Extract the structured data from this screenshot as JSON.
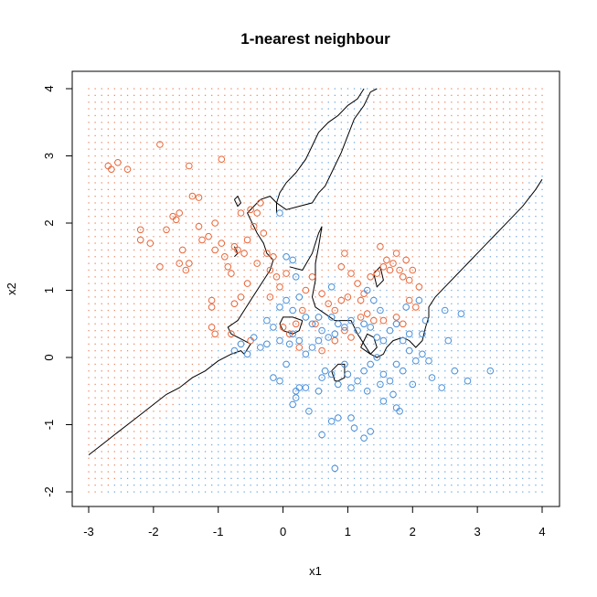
{
  "chart_data": {
    "type": "scatter",
    "title": "1-nearest neighbour",
    "xlabel": "x1",
    "ylabel": "x2",
    "xlim": [
      -3,
      4
    ],
    "ylim": [
      -2,
      4
    ],
    "xticks": [
      -3,
      -2,
      -1,
      0,
      1,
      2,
      3,
      4
    ],
    "yticks": [
      -2,
      -1,
      0,
      1,
      2,
      3,
      4
    ],
    "grid": false,
    "background_grid_step": 0.1,
    "colors": {
      "class_a": "#E8673A",
      "class_b": "#4A8FD8",
      "boundary": "#000000"
    },
    "series": [
      {
        "color_key": "class_a",
        "points": [
          [
            -2.7,
            2.85
          ],
          [
            -2.65,
            2.8
          ],
          [
            -2.55,
            2.9
          ],
          [
            -2.4,
            2.8
          ],
          [
            -1.9,
            3.17
          ],
          [
            -1.45,
            2.85
          ],
          [
            -1.4,
            2.4
          ],
          [
            -1.3,
            2.38
          ],
          [
            -0.95,
            2.95
          ],
          [
            -0.65,
            2.15
          ],
          [
            -0.5,
            2.2
          ],
          [
            -0.35,
            2.3
          ],
          [
            -2.2,
            1.9
          ],
          [
            -2.2,
            1.75
          ],
          [
            -2.05,
            1.7
          ],
          [
            -1.9,
            1.35
          ],
          [
            -1.8,
            1.9
          ],
          [
            -1.7,
            2.1
          ],
          [
            -1.65,
            2.05
          ],
          [
            -1.6,
            2.15
          ],
          [
            -1.55,
            1.6
          ],
          [
            -1.6,
            1.4
          ],
          [
            -1.5,
            1.3
          ],
          [
            -1.45,
            1.4
          ],
          [
            -1.3,
            1.95
          ],
          [
            -1.25,
            1.75
          ],
          [
            -1.15,
            1.8
          ],
          [
            -1.05,
            2.0
          ],
          [
            -1.05,
            1.6
          ],
          [
            -0.95,
            1.7
          ],
          [
            -0.9,
            1.5
          ],
          [
            -0.85,
            1.35
          ],
          [
            -0.8,
            1.25
          ],
          [
            -0.75,
            1.65
          ],
          [
            -0.7,
            1.6
          ],
          [
            -0.6,
            1.55
          ],
          [
            -0.55,
            1.75
          ],
          [
            -0.45,
            1.95
          ],
          [
            -0.4,
            2.15
          ],
          [
            -0.3,
            1.85
          ],
          [
            -0.25,
            1.55
          ],
          [
            -0.2,
            1.3
          ],
          [
            -0.15,
            1.5
          ],
          [
            -0.1,
            1.2
          ],
          [
            -0.05,
            1.05
          ],
          [
            0.05,
            1.25
          ],
          [
            -0.4,
            1.4
          ],
          [
            -0.55,
            1.1
          ],
          [
            -0.65,
            0.9
          ],
          [
            -0.75,
            0.8
          ],
          [
            -1.1,
            0.85
          ],
          [
            -1.1,
            0.75
          ],
          [
            -1.1,
            0.45
          ],
          [
            -1.05,
            0.35
          ],
          [
            -0.2,
            0.9
          ],
          [
            0.0,
            0.45
          ],
          [
            0.1,
            0.35
          ],
          [
            0.2,
            0.5
          ],
          [
            0.3,
            0.7
          ],
          [
            0.35,
            1.0
          ],
          [
            0.45,
            1.2
          ],
          [
            0.6,
            0.95
          ],
          [
            0.7,
            0.8
          ],
          [
            0.8,
            0.7
          ],
          [
            0.9,
            0.85
          ],
          [
            0.9,
            1.35
          ],
          [
            0.95,
            1.55
          ],
          [
            1.05,
            1.25
          ],
          [
            1.15,
            1.1
          ],
          [
            1.25,
            0.95
          ],
          [
            1.35,
            1.2
          ],
          [
            1.45,
            1.25
          ],
          [
            1.55,
            1.35
          ],
          [
            1.5,
            1.65
          ],
          [
            1.6,
            1.45
          ],
          [
            1.65,
            1.3
          ],
          [
            1.7,
            1.4
          ],
          [
            1.75,
            1.55
          ],
          [
            1.8,
            1.3
          ],
          [
            1.85,
            1.2
          ],
          [
            1.9,
            1.45
          ],
          [
            1.95,
            1.15
          ],
          [
            2.0,
            1.3
          ],
          [
            2.1,
            1.05
          ],
          [
            1.55,
            0.55
          ],
          [
            1.75,
            0.6
          ],
          [
            1.85,
            0.5
          ],
          [
            1.95,
            0.85
          ],
          [
            2.05,
            0.75
          ],
          [
            1.2,
            0.85
          ],
          [
            1.3,
            0.65
          ],
          [
            0.95,
            0.4
          ],
          [
            1.05,
            0.3
          ],
          [
            1.2,
            0.6
          ],
          [
            1.4,
            0.55
          ],
          [
            0.6,
            0.1
          ],
          [
            0.8,
            0.25
          ],
          [
            0.5,
            0.5
          ],
          [
            -0.8,
            0.35
          ],
          [
            -0.5,
            0.25
          ],
          [
            1.0,
            0.9
          ],
          [
            0.25,
            0.15
          ]
        ]
      },
      {
        "color_key": "class_b",
        "points": [
          [
            -0.05,
            2.15
          ],
          [
            0.05,
            1.5
          ],
          [
            0.15,
            1.45
          ],
          [
            0.2,
            1.2
          ],
          [
            0.25,
            0.9
          ],
          [
            0.05,
            0.85
          ],
          [
            -0.05,
            0.75
          ],
          [
            0.15,
            0.7
          ],
          [
            0.35,
            0.6
          ],
          [
            0.45,
            0.5
          ],
          [
            0.55,
            0.6
          ],
          [
            0.6,
            0.4
          ],
          [
            0.7,
            0.3
          ],
          [
            0.8,
            0.35
          ],
          [
            0.55,
            0.25
          ],
          [
            0.45,
            0.15
          ],
          [
            0.35,
            0.05
          ],
          [
            0.25,
            0.25
          ],
          [
            0.15,
            0.35
          ],
          [
            0.1,
            0.2
          ],
          [
            -0.05,
            0.25
          ],
          [
            -0.15,
            0.45
          ],
          [
            -0.25,
            0.2
          ],
          [
            -0.35,
            0.15
          ],
          [
            -0.45,
            0.3
          ],
          [
            -0.55,
            0.05
          ],
          [
            -0.65,
            0.2
          ],
          [
            -0.75,
            0.1
          ],
          [
            -0.15,
            -0.3
          ],
          [
            -0.05,
            -0.35
          ],
          [
            0.2,
            -0.5
          ],
          [
            0.25,
            -0.45
          ],
          [
            0.2,
            -0.6
          ],
          [
            0.15,
            -0.7
          ],
          [
            0.4,
            -0.8
          ],
          [
            0.55,
            -0.5
          ],
          [
            0.6,
            -0.3
          ],
          [
            0.65,
            -0.2
          ],
          [
            0.75,
            -0.25
          ],
          [
            0.85,
            -0.4
          ],
          [
            0.95,
            -0.1
          ],
          [
            1.0,
            -0.25
          ],
          [
            1.05,
            -0.45
          ],
          [
            1.15,
            -0.35
          ],
          [
            1.25,
            -0.2
          ],
          [
            1.35,
            -0.1
          ],
          [
            1.45,
            0.0
          ],
          [
            1.55,
            -0.25
          ],
          [
            1.65,
            -0.35
          ],
          [
            1.75,
            -0.1
          ],
          [
            1.85,
            -0.2
          ],
          [
            1.95,
            0.1
          ],
          [
            2.05,
            -0.05
          ],
          [
            2.15,
            0.05
          ],
          [
            2.25,
            -0.05
          ],
          [
            2.3,
            -0.3
          ],
          [
            2.45,
            -0.45
          ],
          [
            2.55,
            0.25
          ],
          [
            2.65,
            -0.2
          ],
          [
            2.75,
            0.65
          ],
          [
            2.85,
            -0.35
          ],
          [
            3.2,
            -0.2
          ],
          [
            2.5,
            0.7
          ],
          [
            2.2,
            0.55
          ],
          [
            2.15,
            0.35
          ],
          [
            1.95,
            0.35
          ],
          [
            1.85,
            0.25
          ],
          [
            1.75,
            0.5
          ],
          [
            1.65,
            0.4
          ],
          [
            1.55,
            0.25
          ],
          [
            1.45,
            0.3
          ],
          [
            1.35,
            0.45
          ],
          [
            1.25,
            0.5
          ],
          [
            1.15,
            0.4
          ],
          [
            1.05,
            0.55
          ],
          [
            0.95,
            0.45
          ],
          [
            0.85,
            0.5
          ],
          [
            0.75,
            0.6
          ],
          [
            0.75,
            1.05
          ],
          [
            1.4,
            0.85
          ],
          [
            1.3,
            1.0
          ],
          [
            1.5,
            0.7
          ],
          [
            1.9,
            0.75
          ],
          [
            2.1,
            0.85
          ],
          [
            0.85,
            -0.9
          ],
          [
            0.75,
            -0.95
          ],
          [
            0.6,
            -1.15
          ],
          [
            0.8,
            -1.65
          ],
          [
            1.05,
            -0.9
          ],
          [
            1.1,
            -1.05
          ],
          [
            1.25,
            -1.2
          ],
          [
            1.35,
            -1.1
          ],
          [
            1.55,
            -0.65
          ],
          [
            1.7,
            -0.55
          ],
          [
            1.75,
            -0.75
          ],
          [
            1.8,
            -0.8
          ],
          [
            2.0,
            -0.4
          ],
          [
            1.5,
            -0.4
          ],
          [
            1.3,
            -0.5
          ],
          [
            -0.25,
            0.55
          ],
          [
            0.35,
            -0.45
          ],
          [
            0.05,
            -0.1
          ]
        ]
      }
    ],
    "boundaries": [
      [
        [
          -3,
          -1.45
        ],
        [
          -2.8,
          -1.3
        ],
        [
          -2.6,
          -1.15
        ],
        [
          -2.4,
          -1.0
        ],
        [
          -2.2,
          -0.85
        ],
        [
          -2.0,
          -0.7
        ],
        [
          -1.8,
          -0.55
        ],
        [
          -1.6,
          -0.45
        ],
        [
          -1.4,
          -0.3
        ],
        [
          -1.2,
          -0.2
        ],
        [
          -1.0,
          -0.05
        ],
        [
          -0.8,
          0.05
        ],
        [
          -0.65,
          0.1
        ],
        [
          -0.6,
          0.05
        ],
        [
          -0.5,
          0.2
        ],
        [
          -0.6,
          0.25
        ],
        [
          -0.8,
          0.35
        ],
        [
          -0.85,
          0.45
        ],
        [
          -0.7,
          0.55
        ],
        [
          -0.6,
          0.7
        ],
        [
          -0.5,
          0.85
        ],
        [
          -0.4,
          1.0
        ],
        [
          -0.3,
          1.15
        ],
        [
          -0.2,
          1.3
        ],
        [
          -0.15,
          1.45
        ],
        [
          -0.25,
          1.55
        ],
        [
          -0.3,
          1.7
        ],
        [
          -0.4,
          1.85
        ],
        [
          -0.5,
          2.05
        ],
        [
          -0.55,
          2.15
        ],
        [
          -0.45,
          2.25
        ],
        [
          -0.35,
          2.35
        ],
        [
          -0.2,
          2.4
        ],
        [
          -0.1,
          2.3
        ],
        [
          0.05,
          2.2
        ],
        [
          0.25,
          2.25
        ],
        [
          0.45,
          2.3
        ],
        [
          0.55,
          2.45
        ],
        [
          0.65,
          2.55
        ],
        [
          0.75,
          2.75
        ],
        [
          0.9,
          3.05
        ],
        [
          1.0,
          3.3
        ],
        [
          1.1,
          3.55
        ],
        [
          1.25,
          3.75
        ],
        [
          1.35,
          3.95
        ],
        [
          1.45,
          4.0
        ]
      ],
      [
        [
          1.25,
          4.0
        ],
        [
          1.15,
          3.85
        ],
        [
          1.0,
          3.75
        ],
        [
          0.85,
          3.6
        ],
        [
          0.7,
          3.5
        ],
        [
          0.55,
          3.35
        ],
        [
          0.45,
          3.15
        ],
        [
          0.35,
          2.95
        ],
        [
          0.2,
          2.75
        ],
        [
          0.05,
          2.6
        ],
        [
          -0.05,
          2.45
        ],
        [
          -0.1,
          2.3
        ],
        [
          -0.1,
          2.15
        ]
      ],
      [
        [
          0.1,
          1.35
        ],
        [
          0.3,
          1.3
        ],
        [
          0.45,
          1.55
        ],
        [
          0.55,
          1.85
        ],
        [
          0.6,
          1.95
        ],
        [
          0.55,
          1.65
        ],
        [
          0.5,
          1.4
        ],
        [
          0.5,
          1.15
        ],
        [
          0.45,
          0.9
        ],
        [
          0.5,
          0.75
        ],
        [
          0.65,
          0.65
        ],
        [
          0.8,
          0.55
        ],
        [
          0.9,
          0.55
        ],
        [
          1.05,
          0.55
        ],
        [
          1.15,
          0.35
        ],
        [
          1.25,
          0.2
        ],
        [
          1.35,
          0.05
        ],
        [
          1.45,
          0.0
        ],
        [
          1.55,
          0.05
        ],
        [
          1.6,
          0.15
        ],
        [
          1.7,
          0.25
        ],
        [
          1.85,
          0.3
        ],
        [
          1.95,
          0.25
        ],
        [
          2.05,
          0.15
        ],
        [
          2.15,
          0.25
        ],
        [
          2.2,
          0.45
        ],
        [
          2.25,
          0.6
        ],
        [
          2.25,
          0.75
        ],
        [
          2.35,
          0.9
        ],
        [
          2.5,
          1.05
        ],
        [
          2.7,
          1.25
        ],
        [
          2.9,
          1.45
        ],
        [
          3.1,
          1.65
        ],
        [
          3.3,
          1.85
        ],
        [
          3.5,
          2.05
        ],
        [
          3.7,
          2.25
        ],
        [
          3.9,
          2.5
        ],
        [
          4.0,
          2.65
        ]
      ],
      [
        [
          0.3,
          0.55
        ],
        [
          0.25,
          0.4
        ],
        [
          0.15,
          0.35
        ],
        [
          0.0,
          0.4
        ],
        [
          -0.05,
          0.5
        ],
        [
          0.0,
          0.6
        ],
        [
          0.15,
          0.6
        ],
        [
          0.3,
          0.55
        ]
      ],
      [
        [
          0.8,
          -0.35
        ],
        [
          0.75,
          -0.2
        ],
        [
          0.85,
          -0.1
        ],
        [
          0.95,
          -0.1
        ],
        [
          0.95,
          -0.3
        ],
        [
          0.85,
          -0.35
        ],
        [
          0.8,
          -0.35
        ]
      ],
      [
        [
          1.2,
          0.15
        ],
        [
          1.3,
          0.35
        ],
        [
          1.4,
          0.3
        ],
        [
          1.45,
          0.15
        ],
        [
          1.35,
          0.05
        ],
        [
          1.2,
          0.15
        ]
      ],
      [
        [
          1.4,
          1.25
        ],
        [
          1.5,
          1.35
        ],
        [
          1.55,
          1.15
        ],
        [
          1.45,
          1.05
        ],
        [
          1.4,
          1.25
        ]
      ],
      [
        [
          -0.75,
          2.35
        ],
        [
          -0.7,
          2.4
        ],
        [
          -0.65,
          2.3
        ],
        [
          -0.7,
          2.25
        ],
        [
          -0.75,
          2.35
        ]
      ],
      [
        [
          -0.75,
          1.65
        ],
        [
          -0.7,
          1.55
        ],
        [
          -0.75,
          1.5
        ]
      ]
    ]
  }
}
